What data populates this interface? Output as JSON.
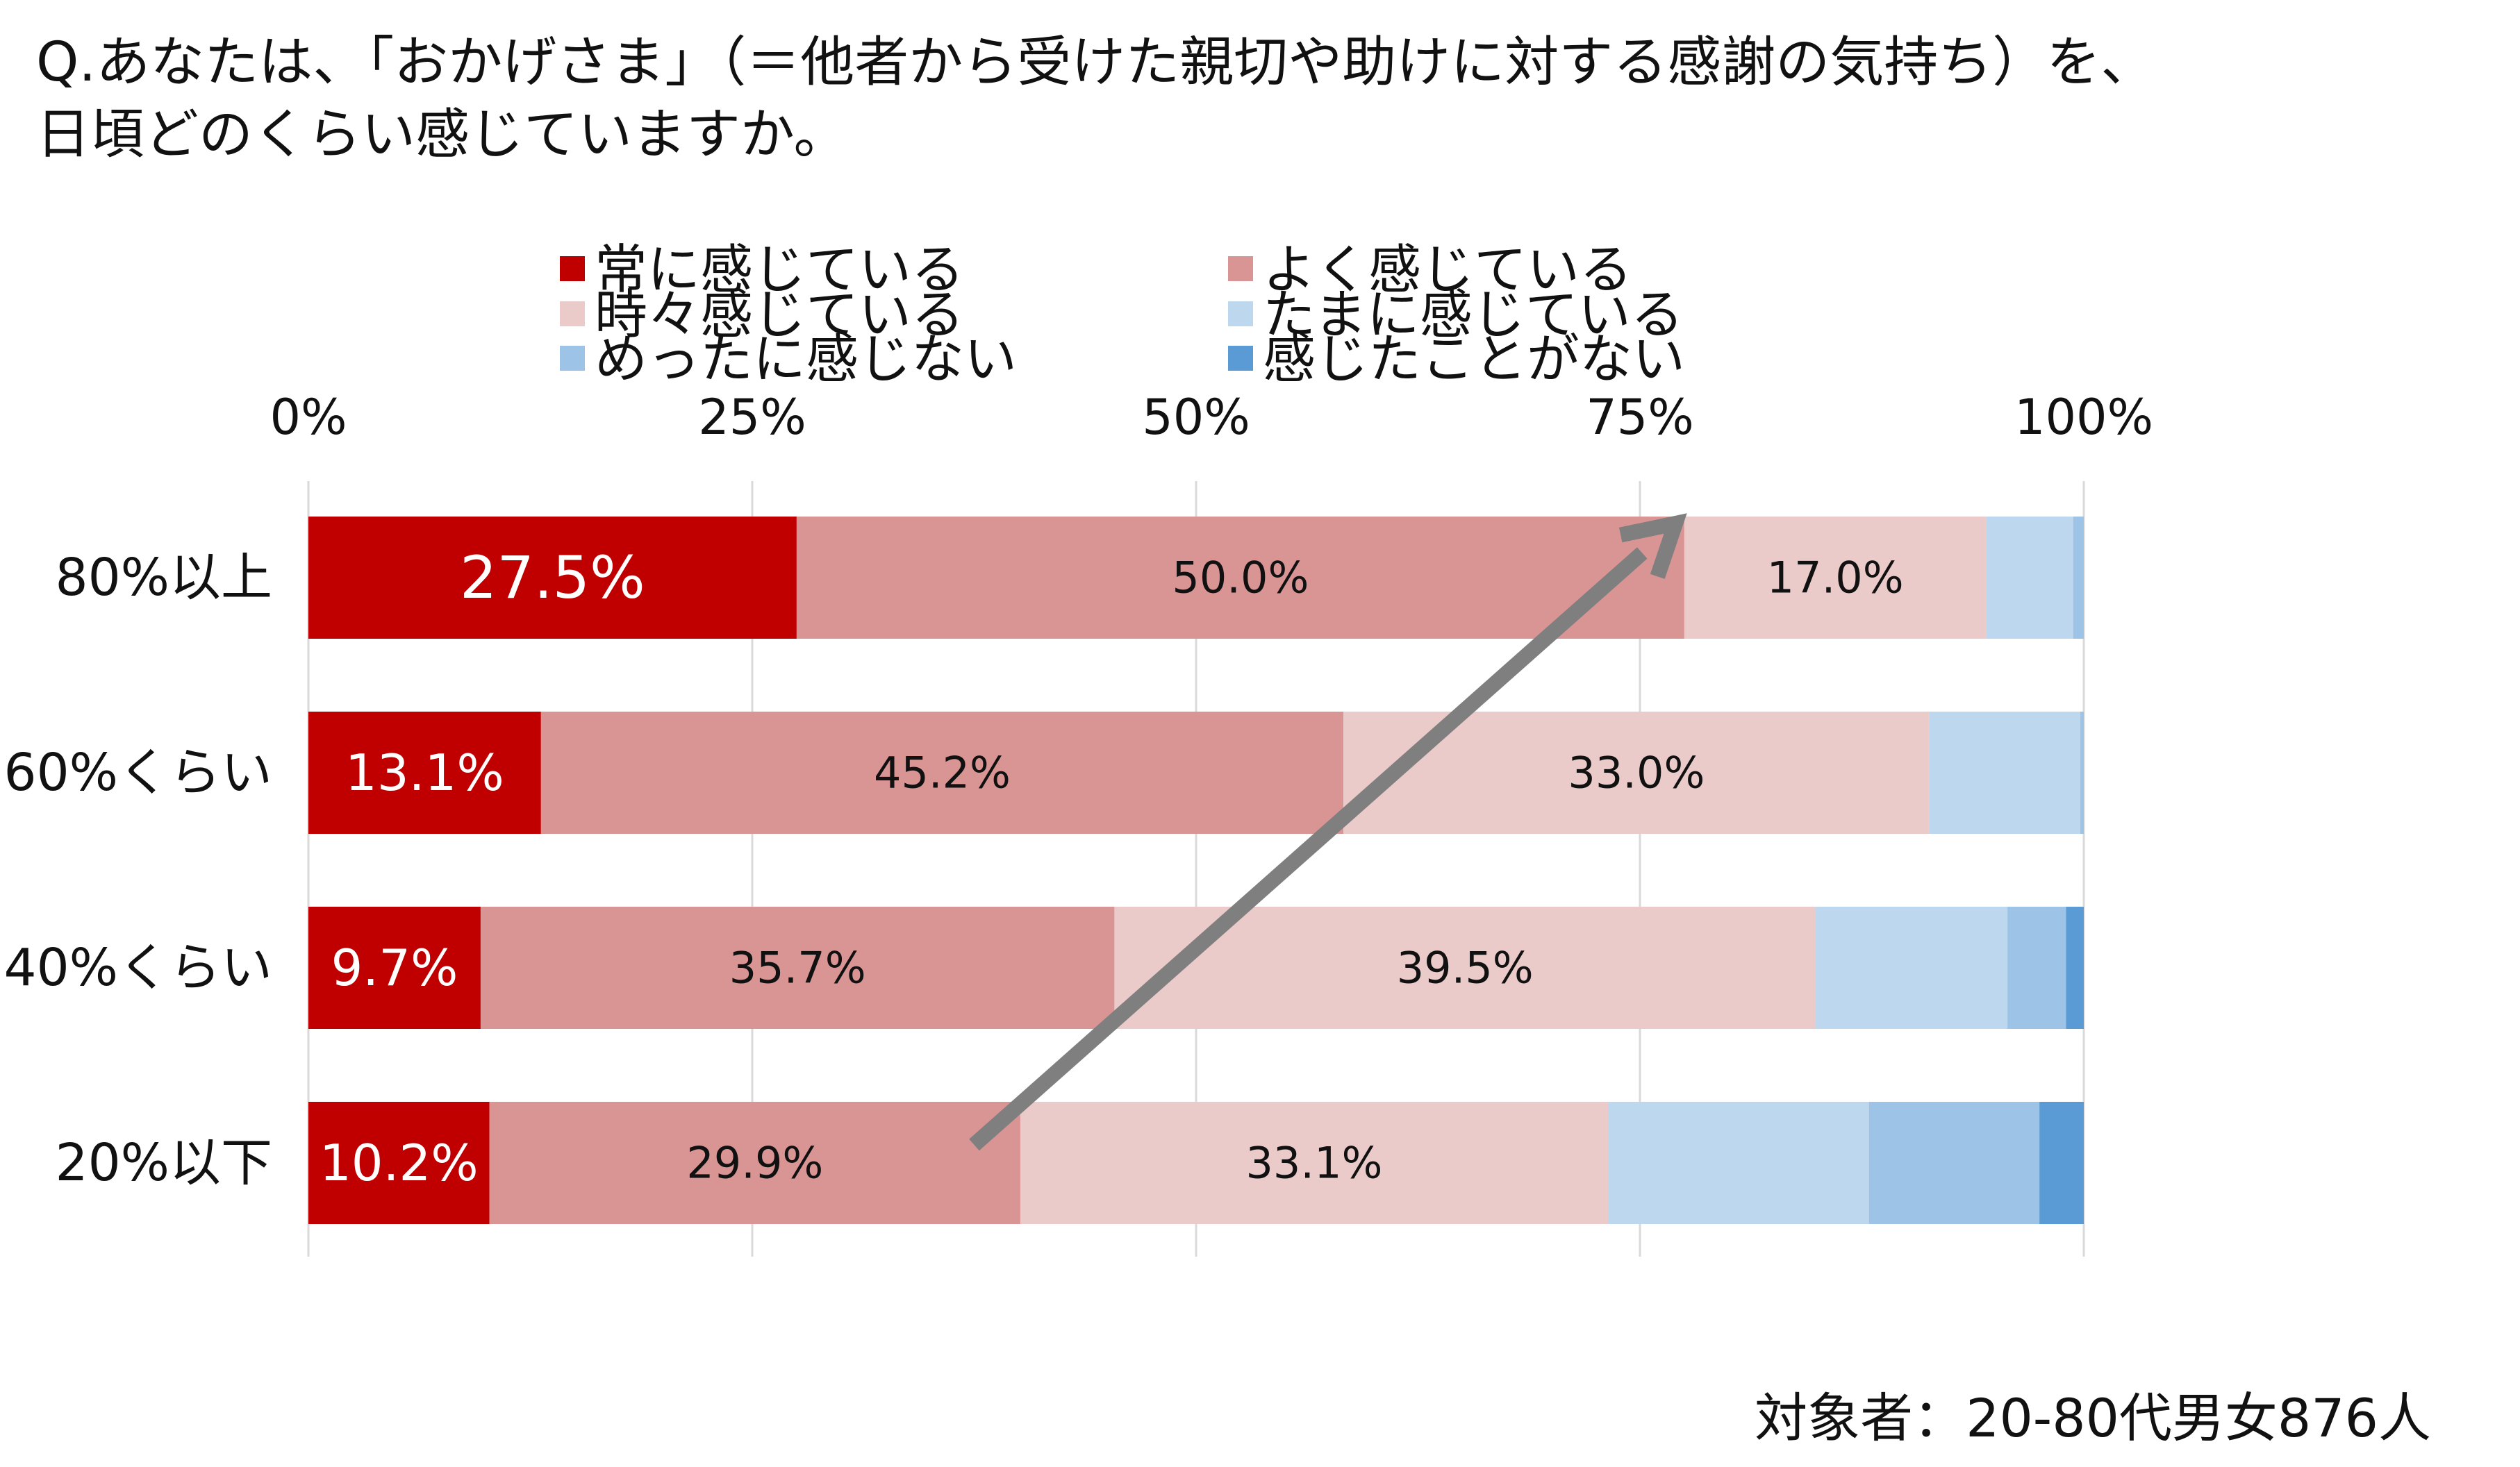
{
  "question": {
    "line1": "Q.あなたは、「おかげさま」（＝他者から受けた親切や助けに対する感謝の気持ち）を、",
    "line2": "日頃どのくらい感じていますか。"
  },
  "footnote": "対象者：20-80代男女876人",
  "colors": {
    "always": "#c00000",
    "often": "#d99594",
    "sometimes": "#ebcaca",
    "occasionally": "#bdd7ee",
    "rarely": "#9dc3e6",
    "never": "#5b9bd5",
    "arrow": "#7f7f7f",
    "grid": "#d9d9d9"
  },
  "chart_data": {
    "type": "bar",
    "orientation": "horizontal",
    "stacked": "100%",
    "xlim": [
      0,
      100
    ],
    "xticks": [
      "0%",
      "25%",
      "50%",
      "75%",
      "100%"
    ],
    "xtick_values": [
      0,
      25,
      50,
      75,
      100
    ],
    "grid": true,
    "legend_position": "top",
    "categories": [
      "80%以上",
      "60%くらい",
      "40%くらい",
      "20%以下"
    ],
    "series": [
      {
        "key": "always",
        "name": "常に感じている",
        "values": [
          27.5,
          13.1,
          9.7,
          10.2
        ],
        "labels": [
          "27.5%",
          "13.1%",
          "9.7%",
          "10.2%"
        ]
      },
      {
        "key": "often",
        "name": "よく感じている",
        "values": [
          50.0,
          45.2,
          35.7,
          29.9
        ],
        "labels": [
          "50.0%",
          "45.2%",
          "35.7%",
          "29.9%"
        ]
      },
      {
        "key": "sometimes",
        "name": "時々感じている",
        "values": [
          17.0,
          33.0,
          39.5,
          33.1
        ],
        "labels": [
          "17.0%",
          "33.0%",
          "39.5%",
          "33.1%"
        ]
      },
      {
        "key": "occasionally",
        "name": "たまに感じている",
        "values": [
          4.9,
          8.5,
          10.8,
          14.7
        ],
        "labels": [
          "",
          "",
          "",
          ""
        ]
      },
      {
        "key": "rarely",
        "name": "めったに感じない",
        "values": [
          0.6,
          0.2,
          3.3,
          9.6
        ],
        "labels": [
          "",
          "",
          "",
          ""
        ]
      },
      {
        "key": "never",
        "name": "感じたことがない",
        "values": [
          0.0,
          0.0,
          1.0,
          2.5
        ],
        "labels": [
          "",
          "",
          "",
          ""
        ]
      }
    ],
    "legend_order": [
      "always",
      "often",
      "sometimes",
      "occasionally",
      "rarely",
      "never"
    ],
    "annotation": {
      "type": "trend-arrow",
      "from": {
        "category": "20%以下",
        "value": 37.5
      },
      "to": {
        "category": "80%以上",
        "value": 77
      }
    }
  }
}
